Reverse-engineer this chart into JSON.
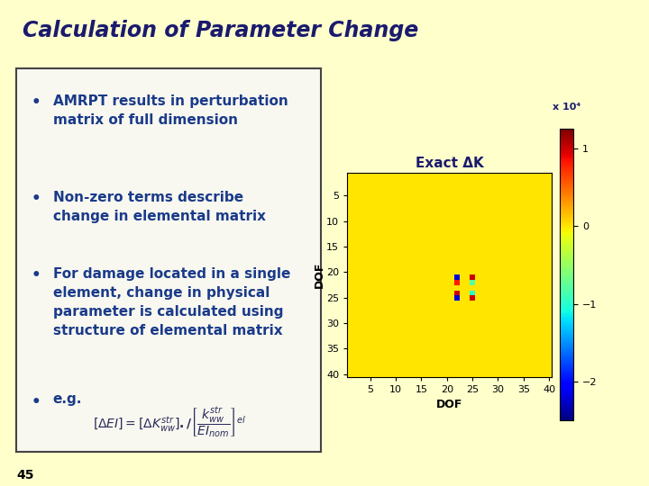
{
  "title": "Calculation of Parameter Change",
  "background_color": "#FFFFCC",
  "textbox_color": "#F5F5E8",
  "title_color": "#1a1a6e",
  "title_fontsize": 17,
  "bullet_color": "#1a3a8a",
  "bullet_fontsize": 11,
  "heatmap_title": "Exact ΔK",
  "heatmap_xlabel": "DOF",
  "heatmap_ylabel": "DOF",
  "heatmap_colorbar_label": "x 10⁴",
  "heatmap_size": 40,
  "heatmap_nonzero": [
    {
      "row": 21,
      "col": 22,
      "val": -2.2
    },
    {
      "row": 21,
      "col": 25,
      "val": 1.0
    },
    {
      "row": 22,
      "col": 22,
      "val": 0.8
    },
    {
      "row": 22,
      "col": 25,
      "val": -0.8
    },
    {
      "row": 24,
      "col": 22,
      "val": 1.0
    },
    {
      "row": 24,
      "col": 25,
      "val": -1.0
    },
    {
      "row": 25,
      "col": 22,
      "val": -2.2
    },
    {
      "row": 25,
      "col": 25,
      "val": 1.0
    }
  ],
  "vmin": -2.5,
  "vmax": 1.25,
  "colorbar_ticks": [
    1,
    0,
    -1,
    -2
  ],
  "xticks": [
    5,
    10,
    15,
    20,
    25,
    30,
    35,
    40
  ],
  "yticks": [
    5,
    10,
    15,
    20,
    25,
    30,
    35,
    40
  ],
  "footnote": "45",
  "divider_color": "#000080",
  "box_edge_color": "#444444"
}
